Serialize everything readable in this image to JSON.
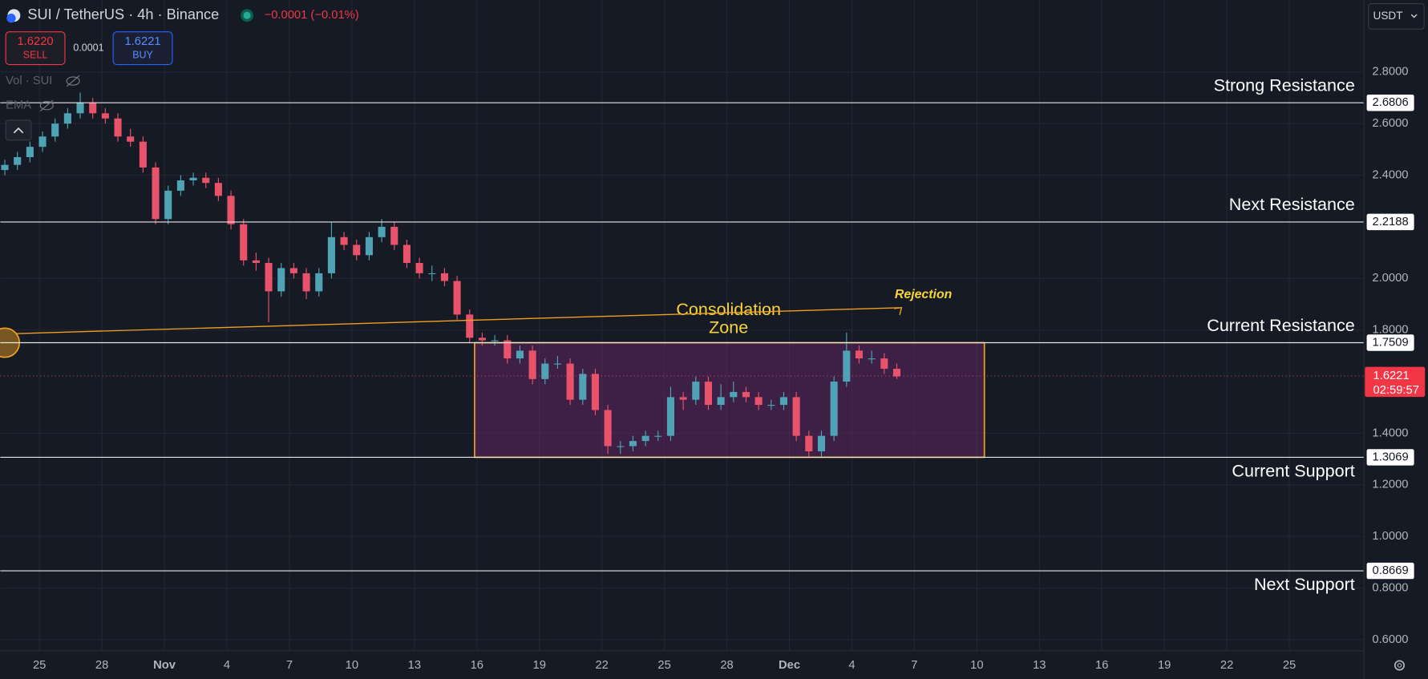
{
  "header": {
    "symbol": "SUI / TetherUS · 4h · Binance",
    "change": "−0.0001 (−0.01%)",
    "sell_price": "1.6220",
    "sell_label": "SELL",
    "spread": "0.0001",
    "buy_price": "1.6221",
    "buy_label": "BUY",
    "indicator_vol": "Vol · SUI",
    "indicator_ema": "EMA",
    "currency": "USDT"
  },
  "chart_data": {
    "type": "candlestick",
    "up_color": "#4fa3b5",
    "down_color": "#e8526a",
    "ohlc": [
      [
        2.42,
        2.46,
        2.4,
        2.44
      ],
      [
        2.44,
        2.49,
        2.42,
        2.47
      ],
      [
        2.47,
        2.53,
        2.45,
        2.51
      ],
      [
        2.51,
        2.57,
        2.49,
        2.55
      ],
      [
        2.55,
        2.62,
        2.53,
        2.6
      ],
      [
        2.6,
        2.66,
        2.58,
        2.64
      ],
      [
        2.64,
        2.72,
        2.62,
        2.68
      ],
      [
        2.68,
        2.7,
        2.62,
        2.64
      ],
      [
        2.64,
        2.66,
        2.6,
        2.62
      ],
      [
        2.62,
        2.64,
        2.53,
        2.55
      ],
      [
        2.55,
        2.58,
        2.51,
        2.53
      ],
      [
        2.53,
        2.55,
        2.41,
        2.43
      ],
      [
        2.43,
        2.45,
        2.21,
        2.23
      ],
      [
        2.23,
        2.36,
        2.21,
        2.34
      ],
      [
        2.34,
        2.4,
        2.32,
        2.38
      ],
      [
        2.38,
        2.41,
        2.36,
        2.39
      ],
      [
        2.39,
        2.41,
        2.35,
        2.37
      ],
      [
        2.37,
        2.39,
        2.3,
        2.32
      ],
      [
        2.32,
        2.34,
        2.19,
        2.21
      ],
      [
        2.21,
        2.23,
        2.05,
        2.07
      ],
      [
        2.07,
        2.1,
        2.03,
        2.06
      ],
      [
        2.06,
        2.08,
        1.83,
        1.95
      ],
      [
        1.95,
        2.06,
        1.93,
        2.04
      ],
      [
        2.04,
        2.06,
        2.0,
        2.02
      ],
      [
        2.02,
        2.04,
        1.92,
        1.95
      ],
      [
        1.95,
        2.04,
        1.93,
        2.02
      ],
      [
        2.02,
        2.22,
        2.0,
        2.16
      ],
      [
        2.16,
        2.18,
        2.11,
        2.13
      ],
      [
        2.13,
        2.15,
        2.07,
        2.09
      ],
      [
        2.09,
        2.18,
        2.07,
        2.16
      ],
      [
        2.16,
        2.23,
        2.14,
        2.2
      ],
      [
        2.2,
        2.22,
        2.11,
        2.13
      ],
      [
        2.13,
        2.15,
        2.04,
        2.06
      ],
      [
        2.06,
        2.08,
        2.0,
        2.02
      ],
      [
        2.02,
        2.05,
        1.99,
        2.02
      ],
      [
        2.02,
        2.04,
        1.97,
        1.99
      ],
      [
        1.99,
        2.01,
        1.84,
        1.86
      ],
      [
        1.86,
        1.88,
        1.75,
        1.77
      ],
      [
        1.77,
        1.79,
        1.74,
        1.76
      ],
      [
        1.76,
        1.78,
        1.74,
        1.76
      ],
      [
        1.76,
        1.78,
        1.67,
        1.69
      ],
      [
        1.69,
        1.74,
        1.67,
        1.72
      ],
      [
        1.72,
        1.74,
        1.59,
        1.61
      ],
      [
        1.61,
        1.69,
        1.59,
        1.67
      ],
      [
        1.67,
        1.7,
        1.65,
        1.67
      ],
      [
        1.67,
        1.69,
        1.51,
        1.53
      ],
      [
        1.53,
        1.65,
        1.51,
        1.63
      ],
      [
        1.63,
        1.65,
        1.47,
        1.49
      ],
      [
        1.49,
        1.51,
        1.32,
        1.35
      ],
      [
        1.35,
        1.37,
        1.32,
        1.35
      ],
      [
        1.35,
        1.39,
        1.33,
        1.37
      ],
      [
        1.37,
        1.41,
        1.35,
        1.39
      ],
      [
        1.39,
        1.41,
        1.37,
        1.39
      ],
      [
        1.39,
        1.58,
        1.37,
        1.54
      ],
      [
        1.54,
        1.56,
        1.49,
        1.53
      ],
      [
        1.53,
        1.62,
        1.51,
        1.6
      ],
      [
        1.6,
        1.62,
        1.49,
        1.51
      ],
      [
        1.51,
        1.59,
        1.49,
        1.54
      ],
      [
        1.54,
        1.6,
        1.52,
        1.56
      ],
      [
        1.56,
        1.58,
        1.52,
        1.54
      ],
      [
        1.54,
        1.56,
        1.49,
        1.51
      ],
      [
        1.51,
        1.53,
        1.49,
        1.51
      ],
      [
        1.51,
        1.56,
        1.49,
        1.54
      ],
      [
        1.54,
        1.56,
        1.37,
        1.39
      ],
      [
        1.39,
        1.41,
        1.31,
        1.33
      ],
      [
        1.33,
        1.41,
        1.31,
        1.39
      ],
      [
        1.39,
        1.62,
        1.37,
        1.6
      ],
      [
        1.6,
        1.79,
        1.58,
        1.72
      ],
      [
        1.72,
        1.74,
        1.67,
        1.69
      ],
      [
        1.69,
        1.72,
        1.67,
        1.69
      ],
      [
        1.69,
        1.71,
        1.63,
        1.65
      ],
      [
        1.65,
        1.67,
        1.61,
        1.62
      ]
    ],
    "ylim": [
      0.557,
      3.079
    ],
    "yticks": [
      {
        "value": 2.8,
        "label": "2.8000"
      },
      {
        "value": 2.6,
        "label": "2.6000"
      },
      {
        "value": 2.4,
        "label": "2.4000"
      },
      {
        "value": 2.0,
        "label": "2.0000"
      },
      {
        "value": 1.8,
        "label": "1.8000"
      },
      {
        "value": 1.4,
        "label": "1.4000"
      },
      {
        "value": 1.2,
        "label": "1.2000"
      },
      {
        "value": 1.0,
        "label": "1.0000"
      },
      {
        "value": 0.8,
        "label": "0.8000"
      },
      {
        "value": 0.6,
        "label": "0.6000"
      }
    ],
    "xticks": [
      "25",
      "28",
      "Nov",
      "4",
      "7",
      "10",
      "13",
      "16",
      "19",
      "22",
      "25",
      "28",
      "Dec",
      "4",
      "7",
      "10",
      "13",
      "16",
      "19",
      "22",
      "25"
    ],
    "grid": true,
    "levels": [
      {
        "name": "Strong Resistance",
        "value": 2.6806
      },
      {
        "name": "Next Resistance",
        "value": 2.2188
      },
      {
        "name": "Current Resistance",
        "value": 1.7509
      },
      {
        "name": "Current Support",
        "value": 1.3069
      },
      {
        "name": "Next Support",
        "value": 0.8669
      }
    ],
    "last_price": 1.6221,
    "countdown": "02:59:57",
    "annotations": {
      "zone": [
        "Consolidation",
        "Zone"
      ],
      "rejection": "Rejection"
    }
  }
}
